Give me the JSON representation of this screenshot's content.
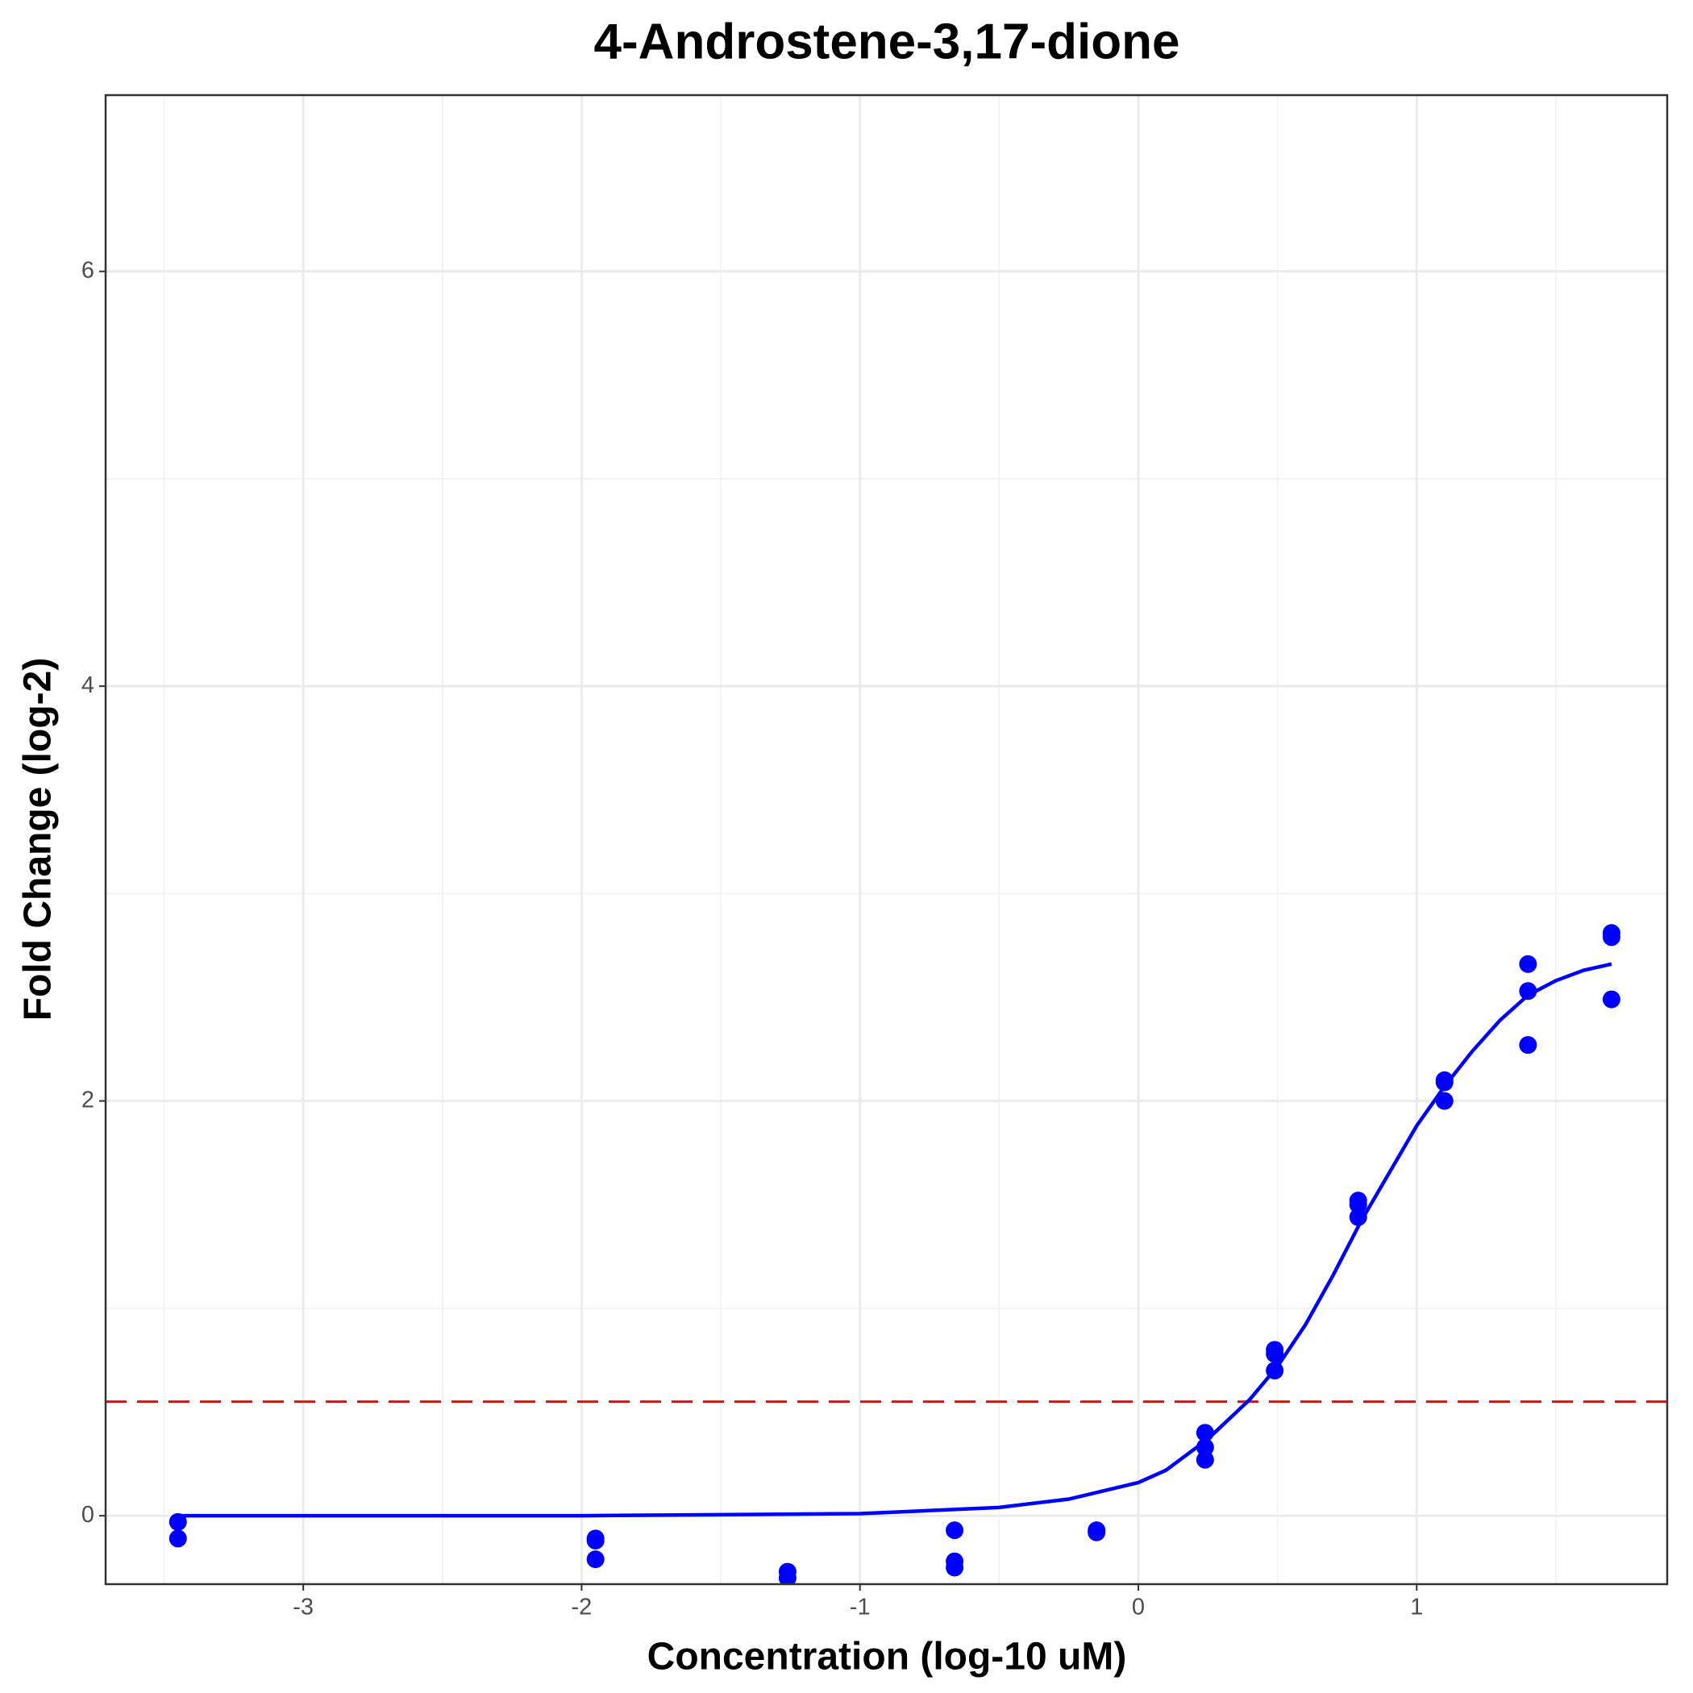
{
  "chart_data": {
    "type": "scatter",
    "title": "4-Androstene-3,17-dione",
    "x_label": "Concentration (log-10 uM)",
    "y_label": "Fold Change (log-2)",
    "xlim": [
      -3.71,
      1.9
    ],
    "ylim": [
      -0.33,
      6.85
    ],
    "xticks": [
      -3,
      -2,
      -1,
      0,
      1
    ],
    "yticks": [
      0,
      2,
      4,
      6
    ],
    "grid": true,
    "points": {
      "color": "#0000ff",
      "x": [
        -3.45,
        -3.45,
        -1.95,
        -1.95,
        -1.95,
        -1.26,
        -1.26,
        -0.66,
        -0.66,
        -0.66,
        -0.15,
        -0.15,
        0.24,
        0.24,
        0.24,
        0.49,
        0.49,
        0.49,
        0.79,
        0.79,
        0.79,
        1.1,
        1.1,
        1.1,
        1.4,
        1.4,
        1.4,
        1.7,
        1.7,
        1.7
      ],
      "values": [
        -0.03,
        -0.11,
        -0.12,
        -0.21,
        -0.11,
        -0.27,
        -0.3,
        -0.07,
        -0.22,
        -0.25,
        -0.08,
        -0.07,
        0.4,
        0.33,
        0.27,
        0.8,
        0.7,
        0.78,
        1.52,
        1.44,
        1.5,
        2.1,
        2.0,
        2.09,
        2.66,
        2.53,
        2.27,
        2.81,
        2.79,
        2.49
      ]
    },
    "fit": {
      "color": "#0000ff",
      "x": [
        -3.45,
        -2,
        -1,
        -0.5,
        -0.25,
        0,
        0.1,
        0.25,
        0.4,
        0.5,
        0.6,
        0.7,
        0.8,
        0.9,
        1.0,
        1.1,
        1.2,
        1.3,
        1.4,
        1.5,
        1.6,
        1.7
      ],
      "values": [
        0,
        0,
        0.01,
        0.04,
        0.08,
        0.16,
        0.22,
        0.37,
        0.56,
        0.72,
        0.92,
        1.16,
        1.42,
        1.65,
        1.88,
        2.07,
        2.24,
        2.39,
        2.51,
        2.58,
        2.63,
        2.66
      ]
    },
    "threshold": {
      "value": 0.55,
      "color": "#ff0000"
    }
  }
}
